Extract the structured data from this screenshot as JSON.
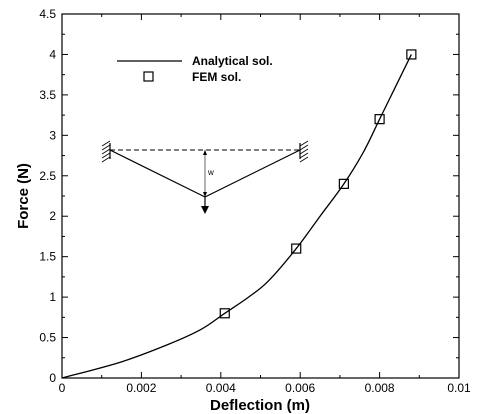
{
  "chart_data": {
    "type": "line",
    "xlabel": "Deflection (m)",
    "ylabel": "Force (N)",
    "xlim": [
      0,
      0.01
    ],
    "ylim": [
      0,
      4.5
    ],
    "xticks": [
      0,
      0.002,
      0.004,
      0.006,
      0.008,
      0.01
    ],
    "xtick_labels": [
      "0",
      "0.002",
      "0.004",
      "0.006",
      "0.008",
      "0.01"
    ],
    "yticks": [
      0,
      0.5,
      1,
      1.5,
      2,
      2.5,
      3,
      3.5,
      4,
      4.5
    ],
    "ytick_labels": [
      "0",
      "0.5",
      "1",
      "1.5",
      "2",
      "2.5",
      "3",
      "3.5",
      "4",
      "4.5"
    ],
    "grid": false,
    "legend_position": "top-left",
    "series": [
      {
        "name": "Analytical sol.",
        "style": "solid-line",
        "color": "#000000",
        "x": [
          0,
          0.0015,
          0.0027,
          0.0035,
          0.0041,
          0.0047,
          0.0052,
          0.0059,
          0.0065,
          0.0071,
          0.0076,
          0.008,
          0.0084,
          0.0088
        ],
        "y": [
          0,
          0.2,
          0.42,
          0.6,
          0.8,
          1.0,
          1.2,
          1.6,
          2.0,
          2.4,
          2.8,
          3.2,
          3.6,
          4.0
        ]
      },
      {
        "name": "FEM sol.",
        "style": "open-square-marker",
        "color": "#000000",
        "x": [
          0.0041,
          0.0059,
          0.0071,
          0.008,
          0.0088
        ],
        "y": [
          0.8,
          1.6,
          2.4,
          3.2,
          4.0
        ]
      }
    ],
    "inset": {
      "description": "string with fixed ends deflected by central point load",
      "label": "w"
    }
  }
}
